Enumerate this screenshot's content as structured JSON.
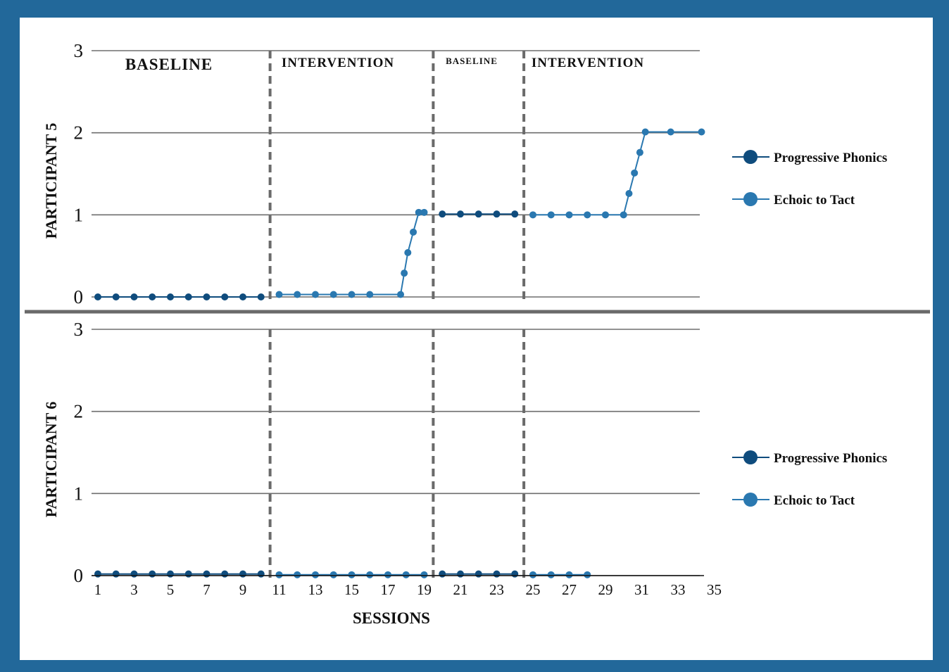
{
  "colors": {
    "frame": "#22689a",
    "progressive_phonics": "#0f4c7d",
    "echoic_to_tact": "#2a78b0",
    "gridline": "#6e6e6e",
    "phase_line": "#6a6a6a"
  },
  "chart_data": [
    {
      "type": "line",
      "panel_label": "PARTICIPANT 5",
      "ylim": [
        0,
        3
      ],
      "yticks": [
        "0",
        "1",
        "2",
        "3"
      ],
      "phases": [
        {
          "label": "BASELINE"
        },
        {
          "label": "INTERVENTION"
        },
        {
          "label": "BASELINE"
        },
        {
          "label": "INTERVENTION"
        }
      ],
      "phase_changes": [
        10.5,
        19.5,
        24.5
      ],
      "legend": [
        "Progressive Phonics",
        "Echoic to Tact"
      ],
      "segments": [
        {
          "series": "Progressive Phonics",
          "x": [
            1,
            2,
            3,
            4,
            5,
            6,
            7,
            8,
            9,
            10
          ],
          "y": [
            0,
            0,
            0,
            0,
            0,
            0,
            0,
            0,
            0,
            0
          ]
        },
        {
          "series": "Echoic to Tact",
          "x": [
            11,
            12,
            13,
            14,
            15,
            16,
            17.7,
            17.9,
            18.1,
            18.4,
            18.7,
            19
          ],
          "y": [
            0.03,
            0.03,
            0.03,
            0.03,
            0.03,
            0.03,
            0.03,
            0.29,
            0.54,
            0.79,
            1.03,
            1.03
          ]
        },
        {
          "series": "Progressive Phonics",
          "x": [
            20,
            21,
            22,
            23,
            24
          ],
          "y": [
            1.01,
            1.01,
            1.01,
            1.01,
            1.01
          ]
        },
        {
          "series": "Echoic to Tact",
          "x": [
            25,
            26,
            27,
            28,
            29,
            30,
            30.3,
            30.6,
            30.9,
            31.2,
            32.6,
            34.3
          ],
          "y": [
            1,
            1,
            1,
            1,
            1,
            1,
            1.26,
            1.51,
            1.76,
            2.01,
            2.01,
            2.01
          ]
        }
      ]
    },
    {
      "type": "line",
      "panel_label": "PARTICIPANT 6",
      "ylim": [
        0,
        3
      ],
      "yticks": [
        "0",
        "1",
        "2",
        "3"
      ],
      "phase_changes": [
        10.5,
        19.5,
        24.5
      ],
      "legend": [
        "Progressive Phonics",
        "Echoic to Tact"
      ],
      "xlabel": "SESSIONS",
      "xticks": [
        "1",
        "3",
        "5",
        "7",
        "9",
        "11",
        "13",
        "15",
        "17",
        "19",
        "21",
        "23",
        "25",
        "27",
        "29",
        "31",
        "33",
        "35"
      ],
      "segments": [
        {
          "series": "Progressive Phonics",
          "x": [
            1,
            2,
            3,
            4,
            5,
            6,
            7,
            8,
            9,
            10
          ],
          "y": [
            0.02,
            0.02,
            0.02,
            0.02,
            0.02,
            0.02,
            0.02,
            0.02,
            0.02,
            0.02
          ]
        },
        {
          "series": "Echoic to Tact",
          "x": [
            11,
            12,
            13,
            14,
            15,
            16,
            17,
            18,
            19
          ],
          "y": [
            0.01,
            0.01,
            0.01,
            0.01,
            0.01,
            0.01,
            0.01,
            0.01,
            0.01
          ]
        },
        {
          "series": "Progressive Phonics",
          "x": [
            20,
            21,
            22,
            23,
            24
          ],
          "y": [
            0.02,
            0.02,
            0.02,
            0.02,
            0.02
          ]
        },
        {
          "series": "Echoic to Tact",
          "x": [
            25,
            26,
            27,
            28
          ],
          "y": [
            0.01,
            0.01,
            0.01,
            0.01
          ]
        }
      ]
    }
  ]
}
